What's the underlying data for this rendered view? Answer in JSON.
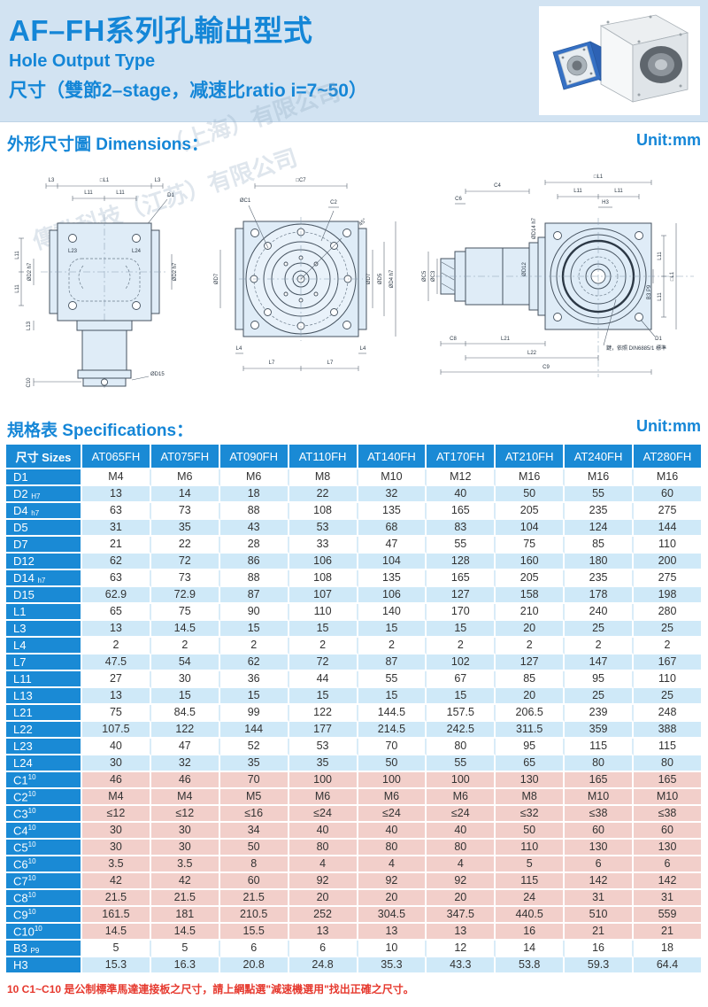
{
  "colors": {
    "accent": "#1486d7",
    "table_head": "#1a8ad5",
    "row_blue": "#cfe9f8",
    "row_pink": "#f2cfca",
    "band_bg": "#d2e3f2",
    "footnote_red": "#e6392e"
  },
  "header": {
    "title": "AF–FH系列孔輸出型式",
    "subtitle_en": "Hole Output Type",
    "subtitle_spec": "尺寸（雙節2–stage，减速比ratio i=7~50）"
  },
  "watermark": [
    "傳動科技（江苏）有限公司",
    "（上海）有限公司"
  ],
  "dimensions": {
    "heading": "外形尺寸圖 Dimensions：",
    "unit": "Unit:mm"
  },
  "specs": {
    "heading": "規格表 Specifications：",
    "unit": "Unit:mm"
  },
  "drawings": {
    "plan": {
      "top": [
        "L3",
        "□L1",
        "L3"
      ],
      "row2": [
        "L11",
        "L11"
      ],
      "d1": "D1",
      "inner": [
        "L23",
        "L24"
      ],
      "right": "ØD2 h7",
      "left": [
        "L11",
        "L11",
        "ØD2 h7",
        "L13"
      ],
      "bottom": [
        "C10",
        "ØD15"
      ]
    },
    "front": {
      "top": [
        "□C7",
        "ØC1",
        "C2",
        "45°"
      ],
      "left": "ØD7",
      "right": [
        "ØD7",
        "ØD5",
        "ØD4 h7"
      ],
      "bottom": [
        "L4",
        "L4",
        "L7",
        "L7"
      ]
    },
    "side": {
      "top": [
        "C6",
        "C4",
        "□L1",
        "L11",
        "L11",
        "H3",
        "ØD14 h7"
      ],
      "left": [
        "ØC5",
        "ØC3"
      ],
      "mid": "ØD12",
      "right": [
        "L11",
        "L11",
        "□L1",
        "B3 P9"
      ],
      "bottom": [
        "C8",
        "L21",
        "L22",
        "C9"
      ],
      "d1": "D1",
      "note": "鍵，依照 DIN6885/1 標準"
    }
  },
  "table": {
    "header": [
      "尺寸 Sizes",
      "AT065FH",
      "AT075FH",
      "AT090FH",
      "AT110FH",
      "AT140FH",
      "AT170FH",
      "AT210FH",
      "AT240FH",
      "AT280FH"
    ],
    "rows": [
      {
        "label": "D1",
        "sub": "",
        "sup": "",
        "band": "w",
        "values": [
          "M4",
          "M6",
          "M6",
          "M8",
          "M10",
          "M12",
          "M16",
          "M16",
          "M16"
        ]
      },
      {
        "label": "D2",
        "sub": "H7",
        "sup": "",
        "band": "b",
        "values": [
          "13",
          "14",
          "18",
          "22",
          "32",
          "40",
          "50",
          "55",
          "60"
        ]
      },
      {
        "label": "D4",
        "sub": "h7",
        "sup": "",
        "band": "w",
        "values": [
          "63",
          "73",
          "88",
          "108",
          "135",
          "165",
          "205",
          "235",
          "275"
        ]
      },
      {
        "label": "D5",
        "sub": "",
        "sup": "",
        "band": "b",
        "values": [
          "31",
          "35",
          "43",
          "53",
          "68",
          "83",
          "104",
          "124",
          "144"
        ]
      },
      {
        "label": "D7",
        "sub": "",
        "sup": "",
        "band": "w",
        "values": [
          "21",
          "22",
          "28",
          "33",
          "47",
          "55",
          "75",
          "85",
          "110"
        ]
      },
      {
        "label": "D12",
        "sub": "",
        "sup": "",
        "band": "b",
        "values": [
          "62",
          "72",
          "86",
          "106",
          "104",
          "128",
          "160",
          "180",
          "200"
        ]
      },
      {
        "label": "D14",
        "sub": "h7",
        "sup": "",
        "band": "w",
        "values": [
          "63",
          "73",
          "88",
          "108",
          "135",
          "165",
          "205",
          "235",
          "275"
        ]
      },
      {
        "label": "D15",
        "sub": "",
        "sup": "",
        "band": "b",
        "values": [
          "62.9",
          "72.9",
          "87",
          "107",
          "106",
          "127",
          "158",
          "178",
          "198"
        ]
      },
      {
        "label": "L1",
        "sub": "",
        "sup": "",
        "band": "w",
        "values": [
          "65",
          "75",
          "90",
          "110",
          "140",
          "170",
          "210",
          "240",
          "280"
        ]
      },
      {
        "label": "L3",
        "sub": "",
        "sup": "",
        "band": "b",
        "values": [
          "13",
          "14.5",
          "15",
          "15",
          "15",
          "15",
          "20",
          "25",
          "25"
        ]
      },
      {
        "label": "L4",
        "sub": "",
        "sup": "",
        "band": "w",
        "values": [
          "2",
          "2",
          "2",
          "2",
          "2",
          "2",
          "2",
          "2",
          "2"
        ]
      },
      {
        "label": "L7",
        "sub": "",
        "sup": "",
        "band": "b",
        "values": [
          "47.5",
          "54",
          "62",
          "72",
          "87",
          "102",
          "127",
          "147",
          "167"
        ]
      },
      {
        "label": "L11",
        "sub": "",
        "sup": "",
        "band": "w",
        "values": [
          "27",
          "30",
          "36",
          "44",
          "55",
          "67",
          "85",
          "95",
          "110"
        ]
      },
      {
        "label": "L13",
        "sub": "",
        "sup": "",
        "band": "b",
        "values": [
          "13",
          "15",
          "15",
          "15",
          "15",
          "15",
          "20",
          "25",
          "25"
        ]
      },
      {
        "label": "L21",
        "sub": "",
        "sup": "",
        "band": "w",
        "values": [
          "75",
          "84.5",
          "99",
          "122",
          "144.5",
          "157.5",
          "206.5",
          "239",
          "248"
        ]
      },
      {
        "label": "L22",
        "sub": "",
        "sup": "",
        "band": "b",
        "values": [
          "107.5",
          "122",
          "144",
          "177",
          "214.5",
          "242.5",
          "311.5",
          "359",
          "388"
        ]
      },
      {
        "label": "L23",
        "sub": "",
        "sup": "",
        "band": "w",
        "values": [
          "40",
          "47",
          "52",
          "53",
          "70",
          "80",
          "95",
          "115",
          "115"
        ]
      },
      {
        "label": "L24",
        "sub": "",
        "sup": "",
        "band": "b",
        "values": [
          "30",
          "32",
          "35",
          "35",
          "50",
          "55",
          "65",
          "80",
          "80"
        ]
      },
      {
        "label": "C1",
        "sub": "",
        "sup": "10",
        "band": "p",
        "values": [
          "46",
          "46",
          "70",
          "100",
          "100",
          "100",
          "130",
          "165",
          "165"
        ]
      },
      {
        "label": "C2",
        "sub": "",
        "sup": "10",
        "band": "p",
        "values": [
          "M4",
          "M4",
          "M5",
          "M6",
          "M6",
          "M6",
          "M8",
          "M10",
          "M10"
        ]
      },
      {
        "label": "C3",
        "sub": "",
        "sup": "10",
        "band": "p",
        "values": [
          "≤12",
          "≤12",
          "≤16",
          "≤24",
          "≤24",
          "≤24",
          "≤32",
          "≤38",
          "≤38"
        ]
      },
      {
        "label": "C4",
        "sub": "",
        "sup": "10",
        "band": "p",
        "values": [
          "30",
          "30",
          "34",
          "40",
          "40",
          "40",
          "50",
          "60",
          "60"
        ]
      },
      {
        "label": "C5",
        "sub": "",
        "sup": "10",
        "band": "p",
        "values": [
          "30",
          "30",
          "50",
          "80",
          "80",
          "80",
          "110",
          "130",
          "130"
        ]
      },
      {
        "label": "C6",
        "sub": "",
        "sup": "10",
        "band": "p",
        "values": [
          "3.5",
          "3.5",
          "8",
          "4",
          "4",
          "4",
          "5",
          "6",
          "6"
        ]
      },
      {
        "label": "C7",
        "sub": "",
        "sup": "10",
        "band": "p",
        "values": [
          "42",
          "42",
          "60",
          "92",
          "92",
          "92",
          "115",
          "142",
          "142"
        ]
      },
      {
        "label": "C8",
        "sub": "",
        "sup": "10",
        "band": "p",
        "values": [
          "21.5",
          "21.5",
          "21.5",
          "20",
          "20",
          "20",
          "24",
          "31",
          "31"
        ]
      },
      {
        "label": "C9",
        "sub": "",
        "sup": "10",
        "band": "p",
        "values": [
          "161.5",
          "181",
          "210.5",
          "252",
          "304.5",
          "347.5",
          "440.5",
          "510",
          "559"
        ]
      },
      {
        "label": "C10",
        "sub": "",
        "sup": "10",
        "band": "p",
        "values": [
          "14.5",
          "14.5",
          "15.5",
          "13",
          "13",
          "13",
          "16",
          "21",
          "21"
        ]
      },
      {
        "label": "B3",
        "sub": "P9",
        "sup": "",
        "band": "w",
        "values": [
          "5",
          "5",
          "6",
          "6",
          "10",
          "12",
          "14",
          "16",
          "18"
        ]
      },
      {
        "label": "H3",
        "sub": "",
        "sup": "",
        "band": "b",
        "values": [
          "15.3",
          "16.3",
          "20.8",
          "24.8",
          "35.3",
          "43.3",
          "53.8",
          "59.3",
          "64.4"
        ]
      }
    ]
  },
  "footnote": "10  C1~C10 是公制標準馬達連接板之尺寸，請上網點選\"減速機選用\"找出正確之尺寸。"
}
